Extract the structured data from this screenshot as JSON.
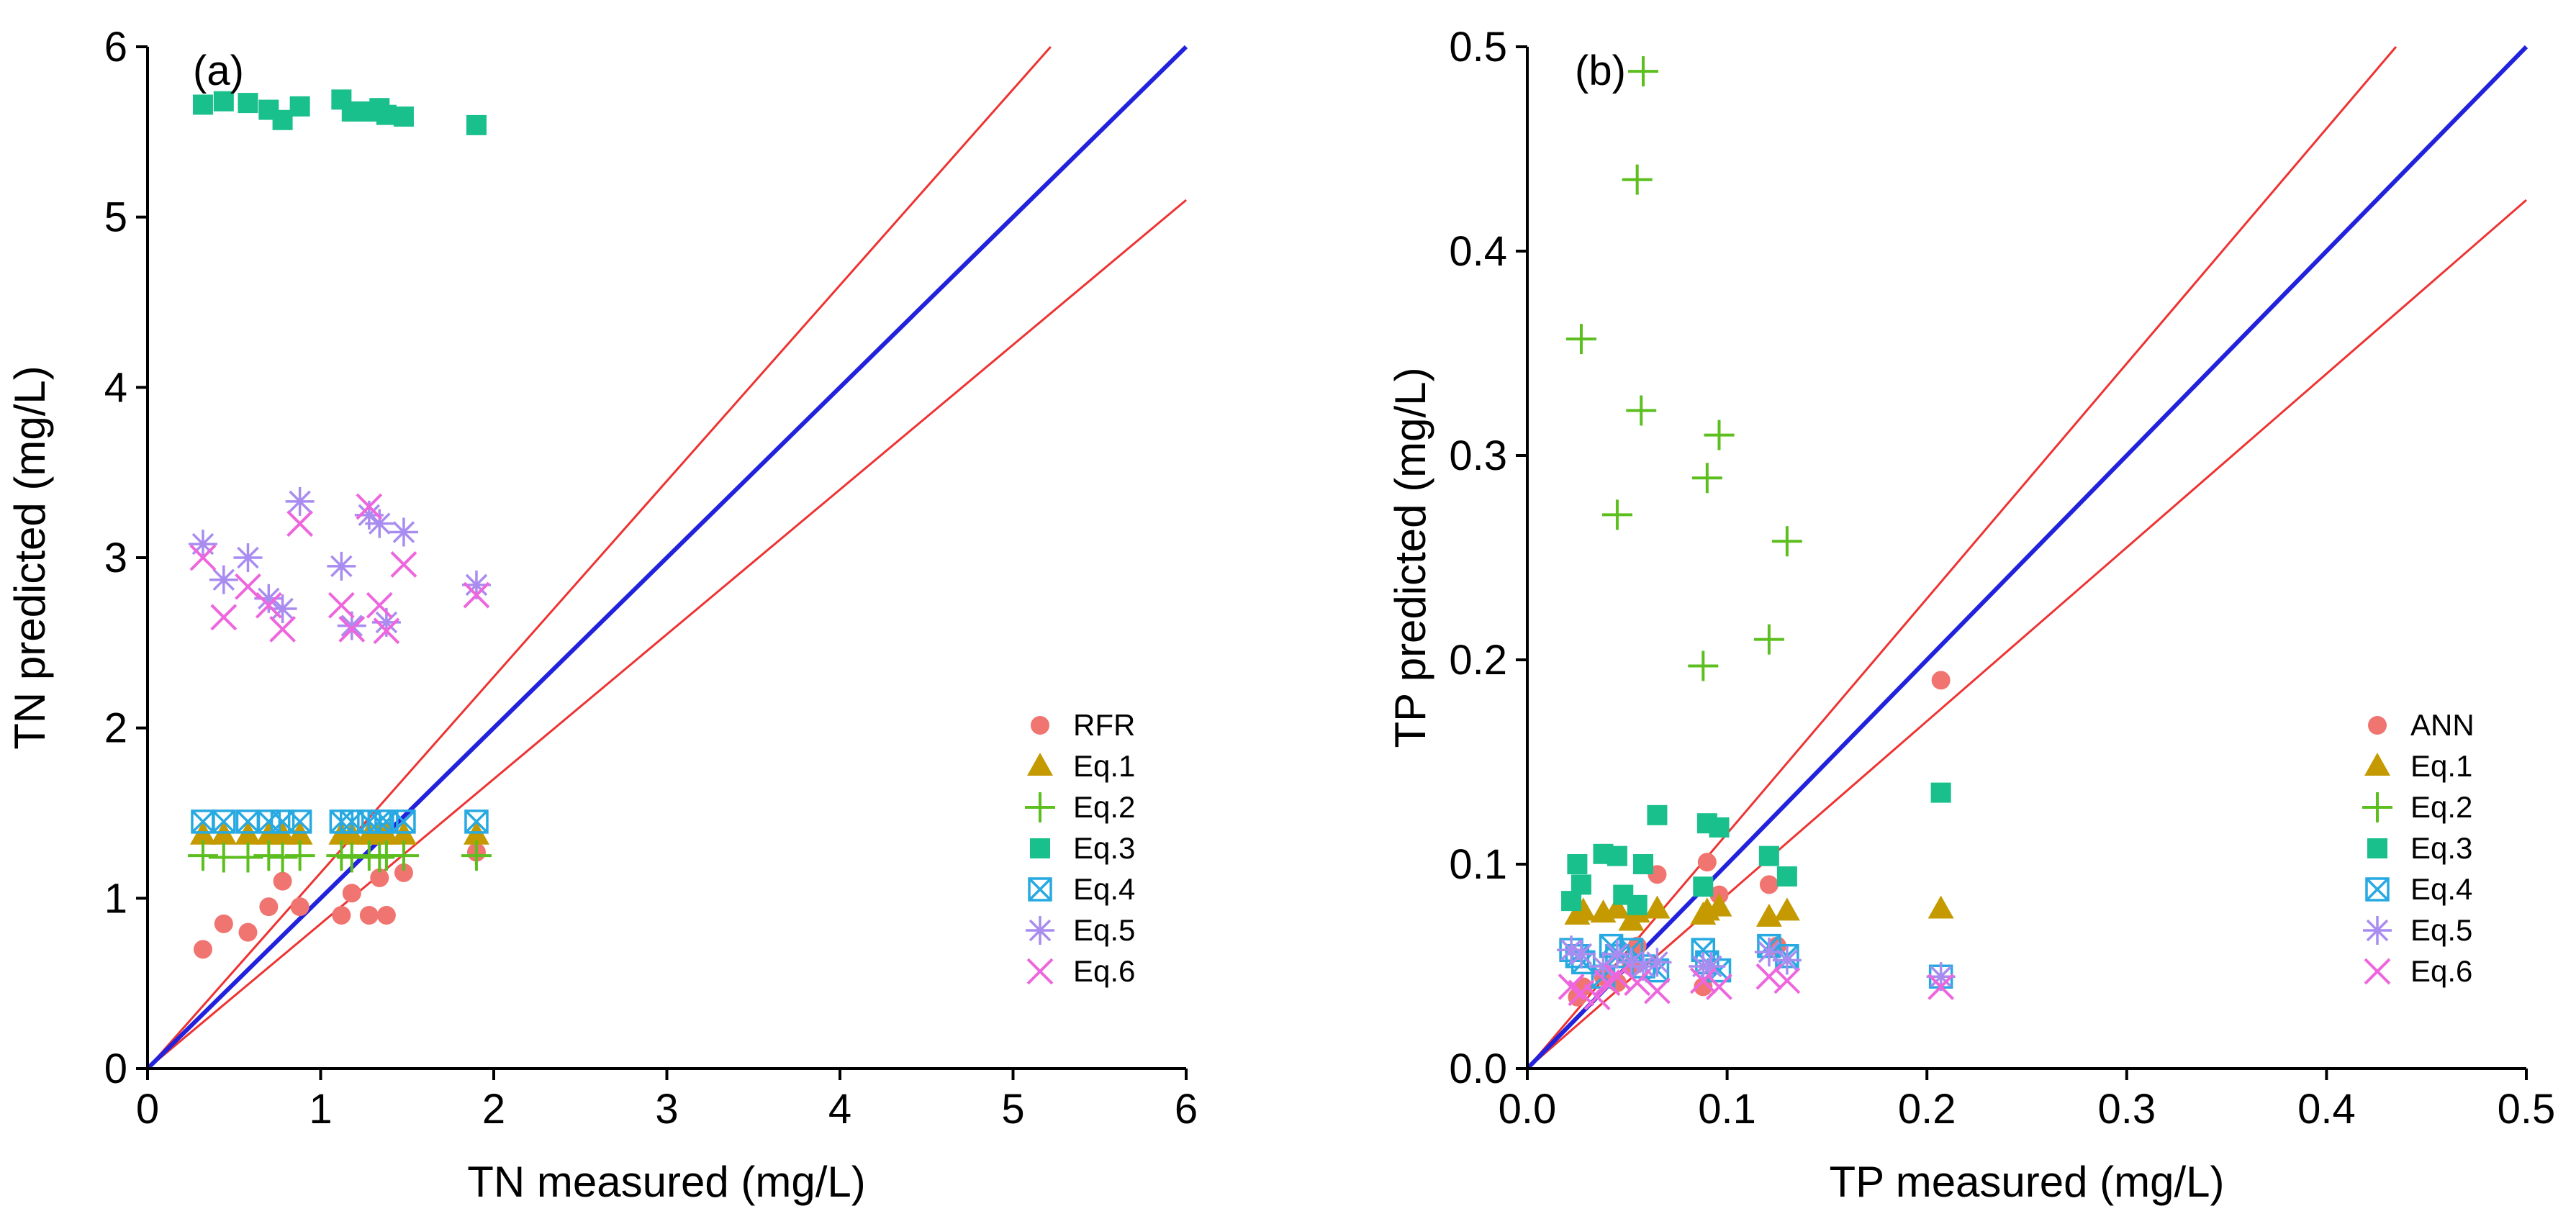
{
  "colors": {
    "ref_line": "#2222dd",
    "band_line": "#ee3333",
    "m1": "#f07470",
    "eq1": "#c49a00",
    "eq2": "#5cbf1f",
    "eq3": "#19c08c",
    "eq4": "#27a9e1",
    "eq5": "#a98cf0",
    "eq6": "#ee66dd"
  },
  "chart_data": [
    {
      "type": "scatter",
      "panel_label": "(a)",
      "xlabel": "TN measured (mg/L)",
      "ylabel": "TN predicted (mg/L)",
      "xlim": [
        0,
        6
      ],
      "ylim": [
        0,
        6
      ],
      "xticks": [
        "0",
        "1",
        "2",
        "3",
        "4",
        "5",
        "6"
      ],
      "yticks": [
        "0",
        "1",
        "2",
        "3",
        "4",
        "5",
        "6"
      ],
      "reference_lines": {
        "one_to_one_slope": 1,
        "upper_slope": 1.15,
        "lower_slope": 0.85
      },
      "legend": [
        "RFR",
        "Eq.1",
        "Eq.2",
        "Eq.3",
        "Eq.4",
        "Eq.5",
        "Eq.6"
      ],
      "series": [
        {
          "name": "RFR",
          "marker": "circle",
          "color_key": "m1",
          "x": [
            0.32,
            0.44,
            0.58,
            0.7,
            0.78,
            0.88,
            1.12,
            1.18,
            1.28,
            1.34,
            1.38,
            1.48,
            1.9
          ],
          "y": [
            0.7,
            0.85,
            0.8,
            0.95,
            1.1,
            0.95,
            0.9,
            1.03,
            0.9,
            1.12,
            0.9,
            1.15,
            1.27
          ]
        },
        {
          "name": "Eq.1",
          "marker": "triangle",
          "color_key": "eq1",
          "x": [
            0.32,
            0.44,
            0.58,
            0.7,
            0.78,
            0.88,
            1.12,
            1.18,
            1.28,
            1.34,
            1.38,
            1.48,
            1.9
          ],
          "y": [
            1.37,
            1.37,
            1.37,
            1.37,
            1.37,
            1.37,
            1.37,
            1.37,
            1.37,
            1.37,
            1.37,
            1.37,
            1.37
          ]
        },
        {
          "name": "Eq.2",
          "marker": "plus",
          "color_key": "eq2",
          "x": [
            0.32,
            0.44,
            0.58,
            0.7,
            0.78,
            0.88,
            1.12,
            1.18,
            1.28,
            1.34,
            1.38,
            1.48,
            1.9
          ],
          "y": [
            1.25,
            1.24,
            1.24,
            1.25,
            1.24,
            1.25,
            1.25,
            1.24,
            1.25,
            1.24,
            1.25,
            1.25,
            1.25
          ]
        },
        {
          "name": "Eq.3",
          "marker": "square",
          "color_key": "eq3",
          "x": [
            0.32,
            0.44,
            0.58,
            0.7,
            0.78,
            0.88,
            1.12,
            1.18,
            1.28,
            1.34,
            1.38,
            1.48,
            1.9
          ],
          "y": [
            5.66,
            5.68,
            5.67,
            5.63,
            5.57,
            5.65,
            5.69,
            5.62,
            5.62,
            5.64,
            5.6,
            5.59,
            5.54
          ]
        },
        {
          "name": "Eq.4",
          "marker": "boxx",
          "color_key": "eq4",
          "x": [
            0.32,
            0.44,
            0.58,
            0.7,
            0.78,
            0.88,
            1.12,
            1.18,
            1.28,
            1.34,
            1.38,
            1.48,
            1.9
          ],
          "y": [
            1.45,
            1.45,
            1.45,
            1.45,
            1.45,
            1.45,
            1.45,
            1.45,
            1.45,
            1.45,
            1.45,
            1.45,
            1.45
          ]
        },
        {
          "name": "Eq.5",
          "marker": "star",
          "color_key": "eq5",
          "x": [
            0.32,
            0.44,
            0.58,
            0.7,
            0.78,
            0.88,
            1.12,
            1.18,
            1.28,
            1.34,
            1.38,
            1.48,
            1.9
          ],
          "y": [
            3.08,
            2.87,
            3.0,
            2.76,
            2.7,
            3.33,
            2.95,
            2.6,
            3.25,
            3.2,
            2.62,
            3.15,
            2.84
          ]
        },
        {
          "name": "Eq.6",
          "marker": "x",
          "color_key": "eq6",
          "x": [
            0.32,
            0.44,
            0.58,
            0.7,
            0.78,
            0.88,
            1.12,
            1.18,
            1.28,
            1.34,
            1.38,
            1.48,
            1.9
          ],
          "y": [
            3.0,
            2.65,
            2.83,
            2.72,
            2.58,
            3.2,
            2.72,
            2.58,
            3.3,
            2.72,
            2.57,
            2.96,
            2.78
          ]
        }
      ]
    },
    {
      "type": "scatter",
      "panel_label": "(b)",
      "xlabel": "TP measured (mg/L)",
      "ylabel": "TP predicted (mg/L)",
      "xlim": [
        0,
        0.5
      ],
      "ylim": [
        0,
        0.5
      ],
      "xticks": [
        "0.0",
        "0.1",
        "0.2",
        "0.3",
        "0.4",
        "0.5"
      ],
      "yticks": [
        "0.0",
        "0.1",
        "0.2",
        "0.3",
        "0.4",
        "0.5"
      ],
      "reference_lines": {
        "one_to_one_slope": 1,
        "upper_slope": 1.15,
        "lower_slope": 0.85
      },
      "legend": [
        "ANN",
        "Eq.1",
        "Eq.2",
        "Eq.3",
        "Eq.4",
        "Eq.5",
        "Eq.6"
      ],
      "series": [
        {
          "name": "ANN",
          "marker": "circle",
          "color_key": "m1",
          "x": [
            0.025,
            0.028,
            0.038,
            0.045,
            0.052,
            0.055,
            0.065,
            0.088,
            0.09,
            0.096,
            0.121,
            0.125,
            0.207
          ],
          "y": [
            0.035,
            0.04,
            0.045,
            0.042,
            0.05,
            0.06,
            0.095,
            0.04,
            0.101,
            0.085,
            0.09,
            0.06,
            0.19
          ]
        },
        {
          "name": "Eq.1",
          "marker": "triangle",
          "color_key": "eq1",
          "x": [
            0.025,
            0.028,
            0.038,
            0.045,
            0.052,
            0.055,
            0.065,
            0.088,
            0.09,
            0.096,
            0.121,
            0.13,
            0.207
          ],
          "y": [
            0.075,
            0.077,
            0.076,
            0.078,
            0.072,
            0.076,
            0.078,
            0.075,
            0.077,
            0.079,
            0.074,
            0.077,
            0.078
          ]
        },
        {
          "name": "Eq.2",
          "marker": "plus",
          "color_key": "eq2",
          "x": [
            0.027,
            0.045,
            0.055,
            0.057,
            0.058,
            0.088,
            0.09,
            0.096,
            0.121,
            0.13
          ],
          "y": [
            0.357,
            0.271,
            0.435,
            0.322,
            0.488,
            0.197,
            0.289,
            0.31,
            0.21,
            0.258
          ]
        },
        {
          "name": "Eq.3",
          "marker": "square",
          "color_key": "eq3",
          "x": [
            0.022,
            0.025,
            0.027,
            0.038,
            0.045,
            0.048,
            0.055,
            0.058,
            0.065,
            0.088,
            0.09,
            0.096,
            0.121,
            0.13,
            0.207
          ],
          "y": [
            0.082,
            0.1,
            0.09,
            0.105,
            0.104,
            0.085,
            0.08,
            0.1,
            0.124,
            0.089,
            0.12,
            0.118,
            0.104,
            0.094,
            0.135
          ]
        },
        {
          "name": "Eq.4",
          "marker": "boxx",
          "color_key": "eq4",
          "x": [
            0.022,
            0.025,
            0.028,
            0.038,
            0.042,
            0.045,
            0.052,
            0.058,
            0.065,
            0.088,
            0.09,
            0.096,
            0.121,
            0.13,
            0.207
          ],
          "y": [
            0.058,
            0.055,
            0.052,
            0.045,
            0.06,
            0.055,
            0.058,
            0.05,
            0.048,
            0.058,
            0.052,
            0.048,
            0.06,
            0.055,
            0.045
          ]
        },
        {
          "name": "Eq.5",
          "marker": "star",
          "color_key": "eq5",
          "x": [
            0.022,
            0.027,
            0.038,
            0.045,
            0.052,
            0.058,
            0.065,
            0.088,
            0.092,
            0.121,
            0.13,
            0.207
          ],
          "y": [
            0.058,
            0.056,
            0.05,
            0.056,
            0.052,
            0.05,
            0.052,
            0.05,
            0.05,
            0.057,
            0.053,
            0.045
          ]
        },
        {
          "name": "Eq.6",
          "marker": "x",
          "color_key": "eq6",
          "x": [
            0.022,
            0.027,
            0.035,
            0.04,
            0.045,
            0.055,
            0.065,
            0.088,
            0.096,
            0.121,
            0.13,
            0.207
          ],
          "y": [
            0.04,
            0.037,
            0.035,
            0.042,
            0.045,
            0.042,
            0.038,
            0.043,
            0.04,
            0.045,
            0.043,
            0.04
          ]
        }
      ]
    }
  ]
}
